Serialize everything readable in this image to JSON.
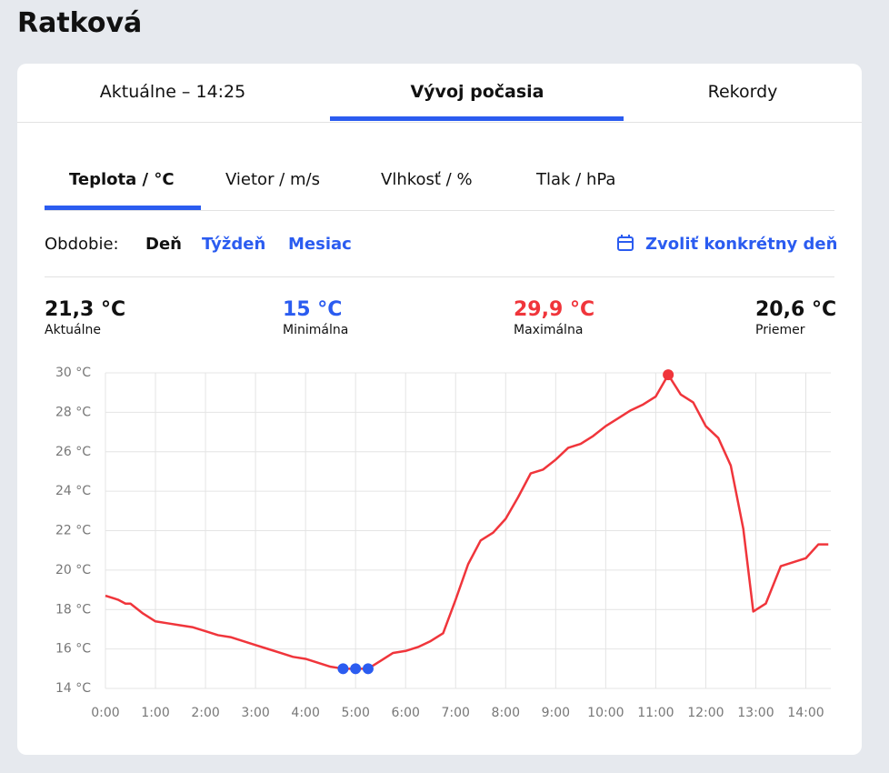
{
  "page_title": "Ratková",
  "tabs": [
    "Aktuálne – 14:25",
    "Vývoj počasia",
    "Rekordy"
  ],
  "subtabs": [
    "Teplota / °C",
    "Vietor / m/s",
    "Vlhkosť / %",
    "Tlak / hPa"
  ],
  "period": {
    "label": "Obdobie:",
    "options": [
      "Deň",
      "Týždeň",
      "Mesiac"
    ],
    "pick_day": "Zvoliť konkrétny deň"
  },
  "stats": [
    {
      "value": "21,3 °C",
      "label": "Aktuálne"
    },
    {
      "value": "15 °C",
      "label": "Minimálna"
    },
    {
      "value": "29,9 °C",
      "label": "Maximálna"
    },
    {
      "value": "20,6 °C",
      "label": "Priemer"
    }
  ],
  "chart_data": {
    "type": "line",
    "color": "#f0353b",
    "grid": true,
    "x": [
      0,
      0.25,
      0.4,
      0.5,
      0.75,
      1,
      1.25,
      1.5,
      1.75,
      2,
      2.25,
      2.5,
      2.75,
      3,
      3.25,
      3.5,
      3.75,
      4,
      4.25,
      4.5,
      4.75,
      5,
      5.25,
      5.5,
      5.75,
      6,
      6.25,
      6.5,
      6.75,
      7,
      7.25,
      7.5,
      7.75,
      8,
      8.25,
      8.5,
      8.75,
      9,
      9.25,
      9.5,
      9.75,
      10,
      10.25,
      10.5,
      10.75,
      11,
      11.25,
      11.5,
      11.75,
      12,
      12.25,
      12.5,
      12.75,
      12.95,
      13.2,
      13.5,
      13.75,
      14,
      14.25,
      14.45
    ],
    "values": [
      18.7,
      18.5,
      18.3,
      18.3,
      17.8,
      17.4,
      17.3,
      17.2,
      17.1,
      16.9,
      16.7,
      16.6,
      16.4,
      16.2,
      16,
      15.8,
      15.6,
      15.5,
      15.3,
      15.1,
      15,
      15,
      15,
      15.4,
      15.8,
      15.9,
      16.1,
      16.4,
      16.8,
      18.5,
      20.3,
      21.5,
      21.9,
      22.6,
      23.7,
      24.9,
      25.1,
      25.6,
      26.2,
      26.4,
      26.8,
      27.3,
      27.7,
      28.1,
      28.4,
      28.8,
      29.9,
      28.9,
      28.5,
      27.3,
      26.7,
      25.3,
      22.1,
      17.9,
      18.3,
      20.2,
      20.4,
      20.6,
      21.3,
      21.3
    ],
    "xlim": [
      0,
      14.5
    ],
    "xticks": [
      {
        "value": 0,
        "label": "0:00"
      },
      {
        "value": 1,
        "label": "1:00"
      },
      {
        "value": 2,
        "label": "2:00"
      },
      {
        "value": 3,
        "label": "3:00"
      },
      {
        "value": 4,
        "label": "4:00"
      },
      {
        "value": 5,
        "label": "5:00"
      },
      {
        "value": 6,
        "label": "6:00"
      },
      {
        "value": 7,
        "label": "7:00"
      },
      {
        "value": 8,
        "label": "8:00"
      },
      {
        "value": 9,
        "label": "9:00"
      },
      {
        "value": 10,
        "label": "10:00"
      },
      {
        "value": 11,
        "label": "11:00"
      },
      {
        "value": 12,
        "label": "12:00"
      },
      {
        "value": 13,
        "label": "13:00"
      },
      {
        "value": 14,
        "label": "14:00"
      }
    ],
    "ylim": [
      14,
      30
    ],
    "yticks": [
      {
        "value": 14,
        "label": "14 °C"
      },
      {
        "value": 16,
        "label": "16 °C"
      },
      {
        "value": 18,
        "label": "18 °C"
      },
      {
        "value": 20,
        "label": "20 °C"
      },
      {
        "value": 22,
        "label": "22 °C"
      },
      {
        "value": 24,
        "label": "24 °C"
      },
      {
        "value": 26,
        "label": "26 °C"
      },
      {
        "value": 28,
        "label": "28 °C"
      },
      {
        "value": 30,
        "label": "30 °C"
      }
    ]
  }
}
